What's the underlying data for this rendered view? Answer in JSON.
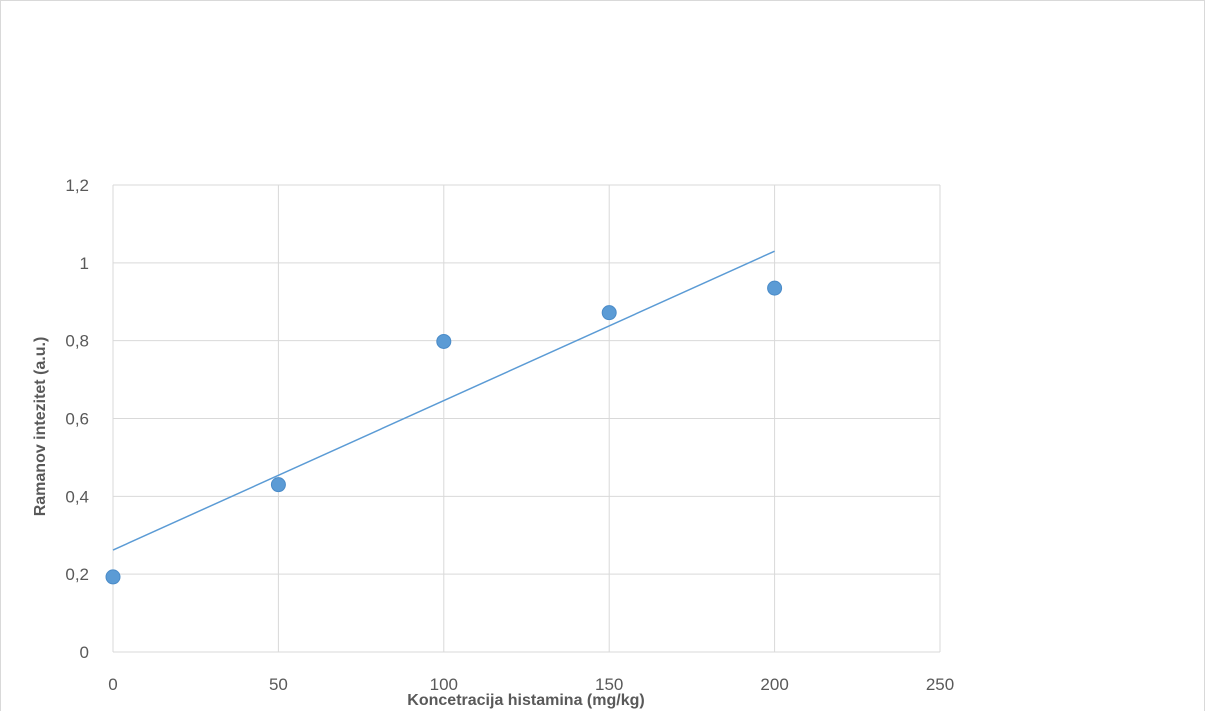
{
  "chart_data": {
    "type": "scatter",
    "title": "",
    "xlabel": "Koncetracija histamina (mg/kg)",
    "ylabel": "Ramanov intezitet (a.u.)",
    "xlim": [
      0,
      250
    ],
    "ylim": [
      0,
      1.2
    ],
    "x_ticks": [
      "0",
      "50",
      "100",
      "150",
      "200",
      "250"
    ],
    "y_ticks": [
      "0",
      "0,2",
      "0,4",
      "0,6",
      "0,8",
      "1",
      "1,2"
    ],
    "grid": true,
    "legend": "none",
    "series": [
      {
        "x": [
          0,
          50,
          100,
          150,
          200
        ],
        "y": [
          0.193,
          0.43,
          0.798,
          0.872,
          0.935
        ],
        "marker_color": "#5b9bd5"
      }
    ],
    "trendline": {
      "type": "linear",
      "x": [
        0,
        200
      ],
      "y": [
        0.262,
        1.03
      ],
      "color": "#5b9bd5"
    },
    "gridline_color": "#d9d9d9",
    "text_color": "#595959"
  }
}
